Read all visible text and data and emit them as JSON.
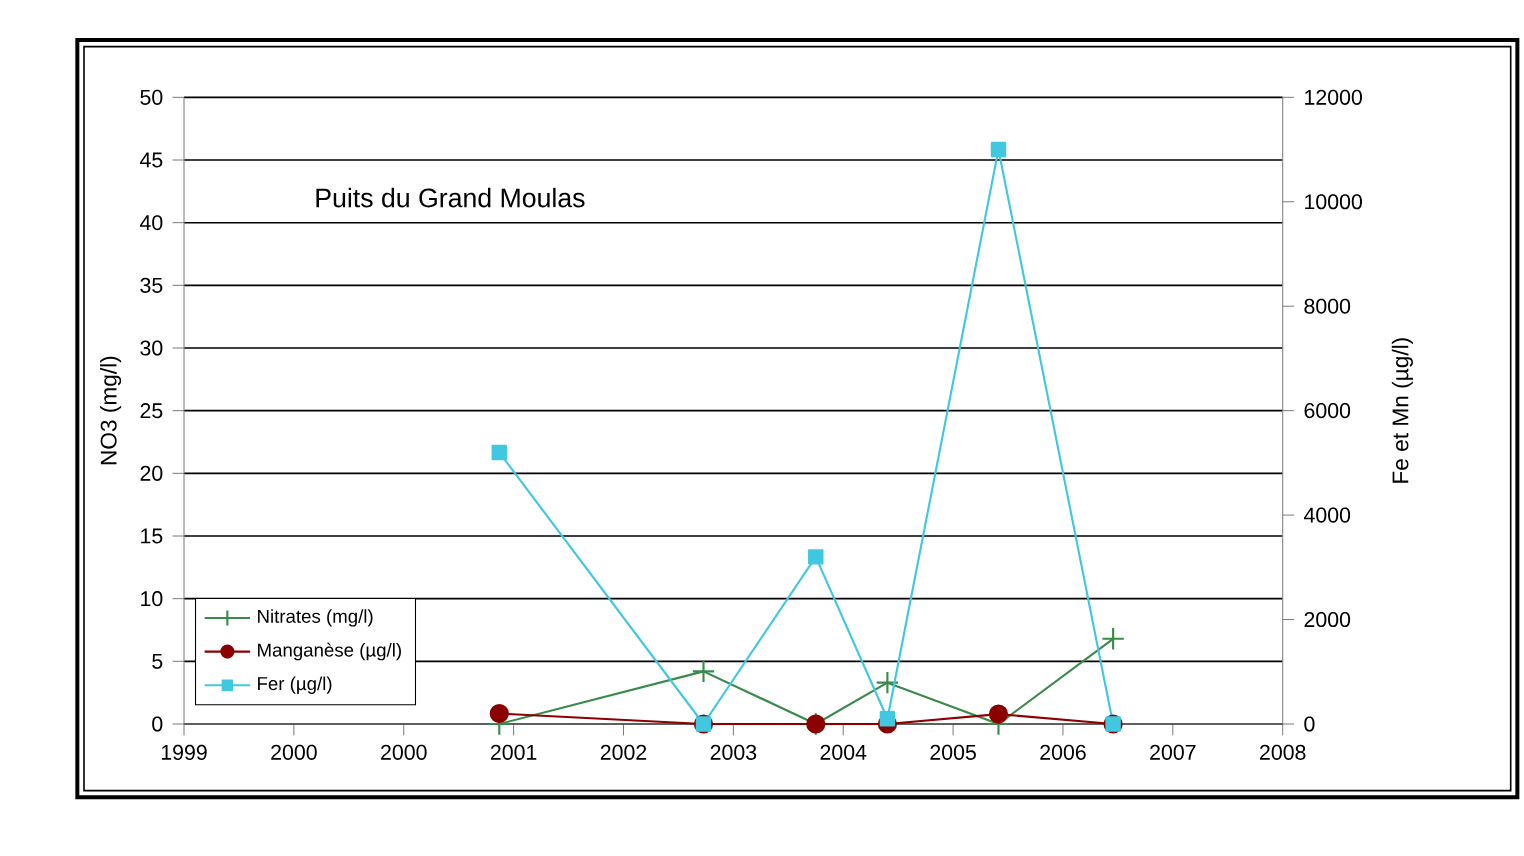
{
  "chart_data": {
    "type": "line",
    "annotations": [
      "Puits du Grand Moulas"
    ],
    "ylabel": "NO3 (mg/l)",
    "y2label": "Fe et Mn (µg/l)",
    "xlim": [
      1998.65,
      2007.85
    ],
    "xticks": [
      {
        "value": 1998.65,
        "label": "1999"
      },
      {
        "value": 1999.57,
        "label": "2000"
      },
      {
        "value": 2000.49,
        "label": "2000"
      },
      {
        "value": 2001.41,
        "label": "2001"
      },
      {
        "value": 2002.33,
        "label": "2002"
      },
      {
        "value": 2003.25,
        "label": "2003"
      },
      {
        "value": 2004.17,
        "label": "2004"
      },
      {
        "value": 2005.09,
        "label": "2005"
      },
      {
        "value": 2006.01,
        "label": "2006"
      },
      {
        "value": 2006.93,
        "label": "2007"
      },
      {
        "value": 2007.85,
        "label": "2008"
      }
    ],
    "ylim": [
      0,
      50
    ],
    "yticks": [
      0,
      5,
      10,
      15,
      20,
      25,
      30,
      35,
      40,
      45,
      50
    ],
    "y2lim": [
      0,
      12000
    ],
    "y2ticks": [
      0,
      2000,
      4000,
      6000,
      8000,
      10000,
      12000
    ],
    "grid": "y",
    "legend": "bottom left",
    "x": [
      2001.29,
      2003.0,
      2003.94,
      2004.54,
      2005.47,
      2006.43
    ],
    "series": [
      {
        "name": "Nitrates (mg/l)",
        "color": "#3a8a4a",
        "marker": "cross",
        "values": [
          0,
          4.2,
          0,
          3.3,
          0,
          6.8
        ]
      },
      {
        "name": "Manganèse (µg/l)",
        "color": "#8b0000",
        "marker": "circle",
        "axis": "y2",
        "values": [
          200,
          0,
          0,
          0,
          190,
          0
        ]
      },
      {
        "name": "Fer (µg/l)",
        "color": "#40c8e0",
        "marker": "square",
        "axis": "y2",
        "values": [
          5200,
          0,
          3200,
          100,
          11000,
          0
        ]
      }
    ]
  }
}
